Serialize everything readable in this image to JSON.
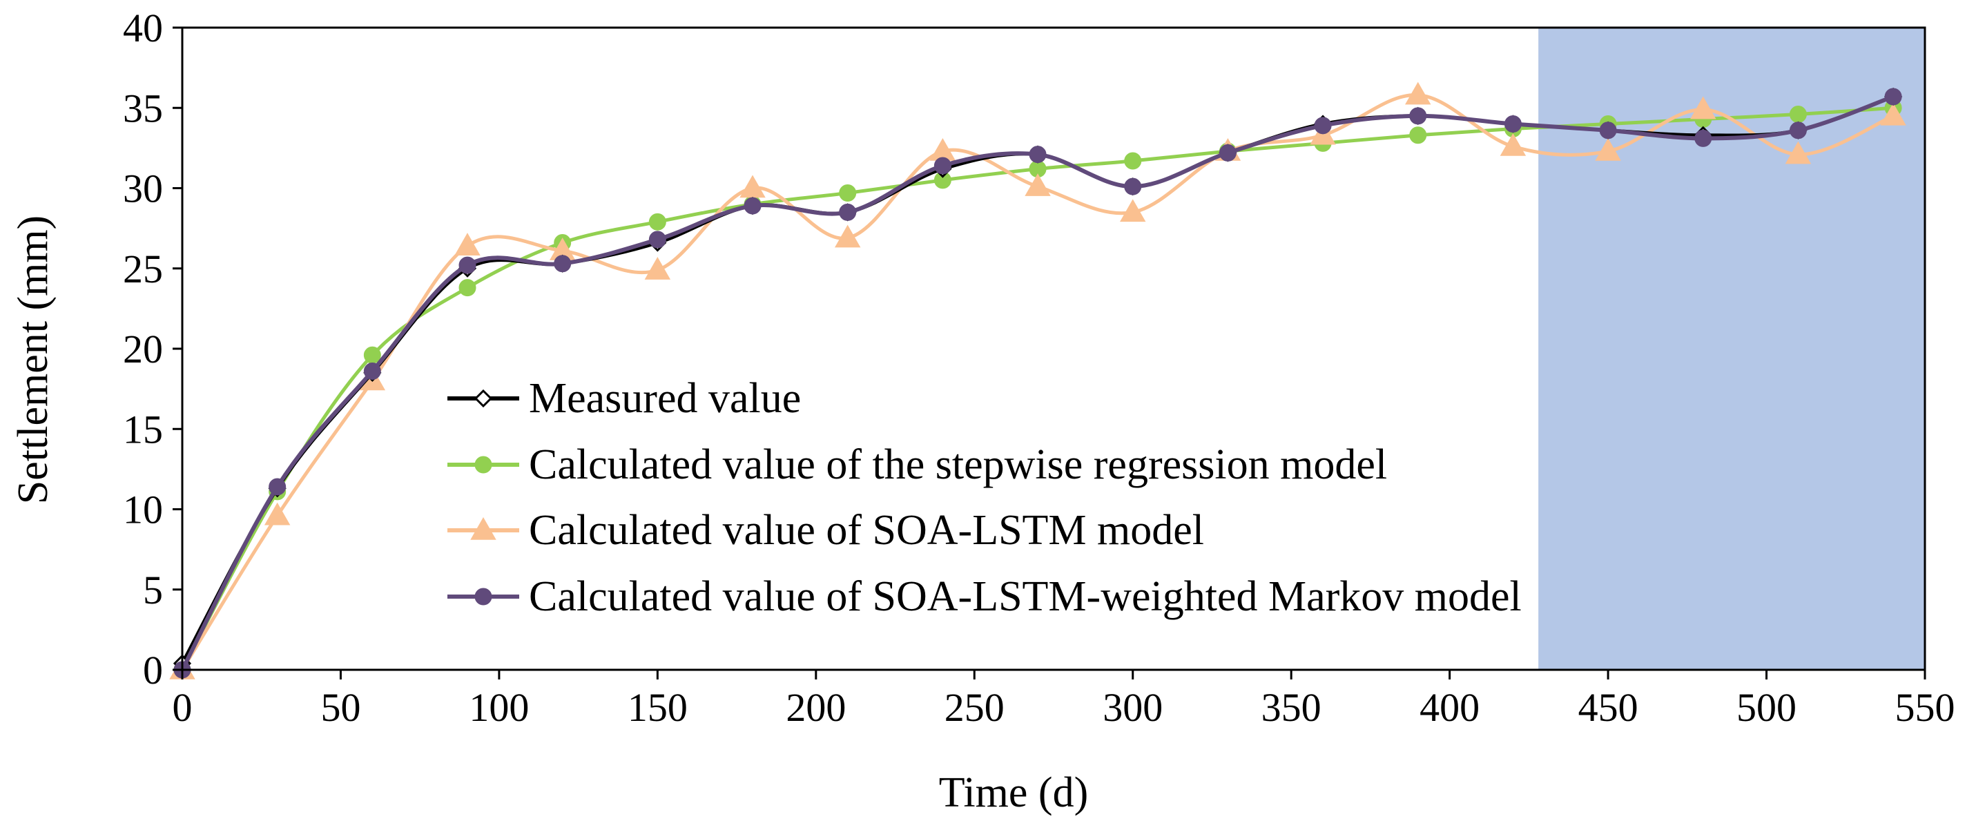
{
  "chart_data": {
    "type": "line",
    "xlabel": "Time (d)",
    "ylabel": "Settlement  (mm)",
    "xlim": [
      0,
      550
    ],
    "ylim": [
      0,
      40
    ],
    "xticks": [
      "0",
      "50",
      "100",
      "150",
      "200",
      "250",
      "300",
      "350",
      "400",
      "450",
      "500",
      "550"
    ],
    "yticks": [
      "0",
      "5",
      "10",
      "15",
      "20",
      "25",
      "30",
      "35",
      "40"
    ],
    "x": [
      0,
      30,
      60,
      90,
      120,
      150,
      180,
      210,
      240,
      270,
      300,
      330,
      360,
      390,
      420,
      450,
      480,
      510,
      540
    ],
    "prediction_region": {
      "x_start": 428,
      "x_end": 550,
      "color": "#b4c7e7"
    },
    "legend_position": "center-left",
    "grid": false,
    "series": [
      {
        "name": "Measured value",
        "color": "#000000",
        "marker": "diamond",
        "values": [
          0.4,
          11.3,
          18.5,
          25.0,
          25.3,
          26.6,
          28.9,
          28.5,
          31.2,
          32.1,
          30.1,
          32.2,
          34.0,
          34.5,
          34.0,
          33.6,
          33.3,
          33.6,
          35.7
        ]
      },
      {
        "name": "Calculated value of the stepwise regression model",
        "color": "#92d050",
        "marker": "circle",
        "values": [
          0.0,
          11.1,
          19.6,
          23.8,
          26.6,
          27.9,
          29.0,
          29.7,
          30.5,
          31.2,
          31.7,
          32.3,
          32.8,
          33.3,
          33.7,
          34.0,
          34.3,
          34.6,
          35.0
        ]
      },
      {
        "name": "Calculated value of SOA-LSTM model",
        "color": "#fac090",
        "marker": "triangle",
        "values": [
          0.0,
          9.6,
          18.0,
          26.4,
          26.1,
          24.9,
          30.0,
          26.9,
          32.3,
          30.1,
          28.5,
          32.3,
          33.3,
          35.8,
          32.6,
          32.3,
          34.9,
          32.1,
          34.5
        ]
      },
      {
        "name": "Calculated value of SOA-LSTM-weighted Markov model",
        "color": "#604a7b",
        "marker": "circle",
        "values": [
          0.0,
          11.4,
          18.6,
          25.2,
          25.3,
          26.8,
          28.9,
          28.5,
          31.4,
          32.1,
          30.1,
          32.2,
          33.9,
          34.5,
          34.0,
          33.6,
          33.1,
          33.6,
          35.7
        ]
      }
    ]
  }
}
